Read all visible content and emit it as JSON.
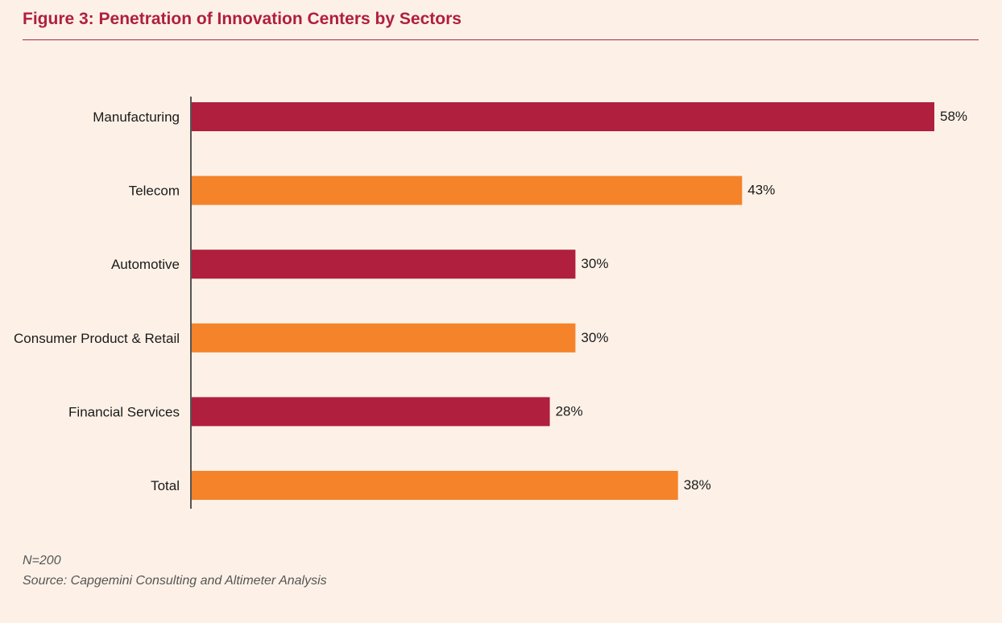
{
  "title": "Figure 3: Penetration of Innovation Centers by Sectors",
  "note": "N=200",
  "source": "Source: Capgemini Consulting and Altimeter Analysis",
  "colors": {
    "title": "#b01f3d",
    "bar_primary": "#b01f3d",
    "bar_secondary": "#f5832a",
    "axis": "#555555",
    "background": "#fdf1e7"
  },
  "chart_data": {
    "type": "bar",
    "orientation": "horizontal",
    "title": "Figure 3: Penetration of Innovation Centers by Sectors",
    "categories": [
      "Manufacturing",
      "Telecom",
      "Automotive",
      "Consumer Product & Retail",
      "Financial Services",
      "Total"
    ],
    "values": [
      58,
      43,
      30,
      30,
      28,
      38
    ],
    "value_labels": [
      "58%",
      "43%",
      "30%",
      "30%",
      "28%",
      "38%"
    ],
    "bar_colors": [
      "#b01f3d",
      "#f5832a",
      "#b01f3d",
      "#f5832a",
      "#b01f3d",
      "#f5832a"
    ],
    "unit": "%",
    "xlim": [
      0,
      60
    ],
    "grid": false,
    "legend": "none"
  }
}
